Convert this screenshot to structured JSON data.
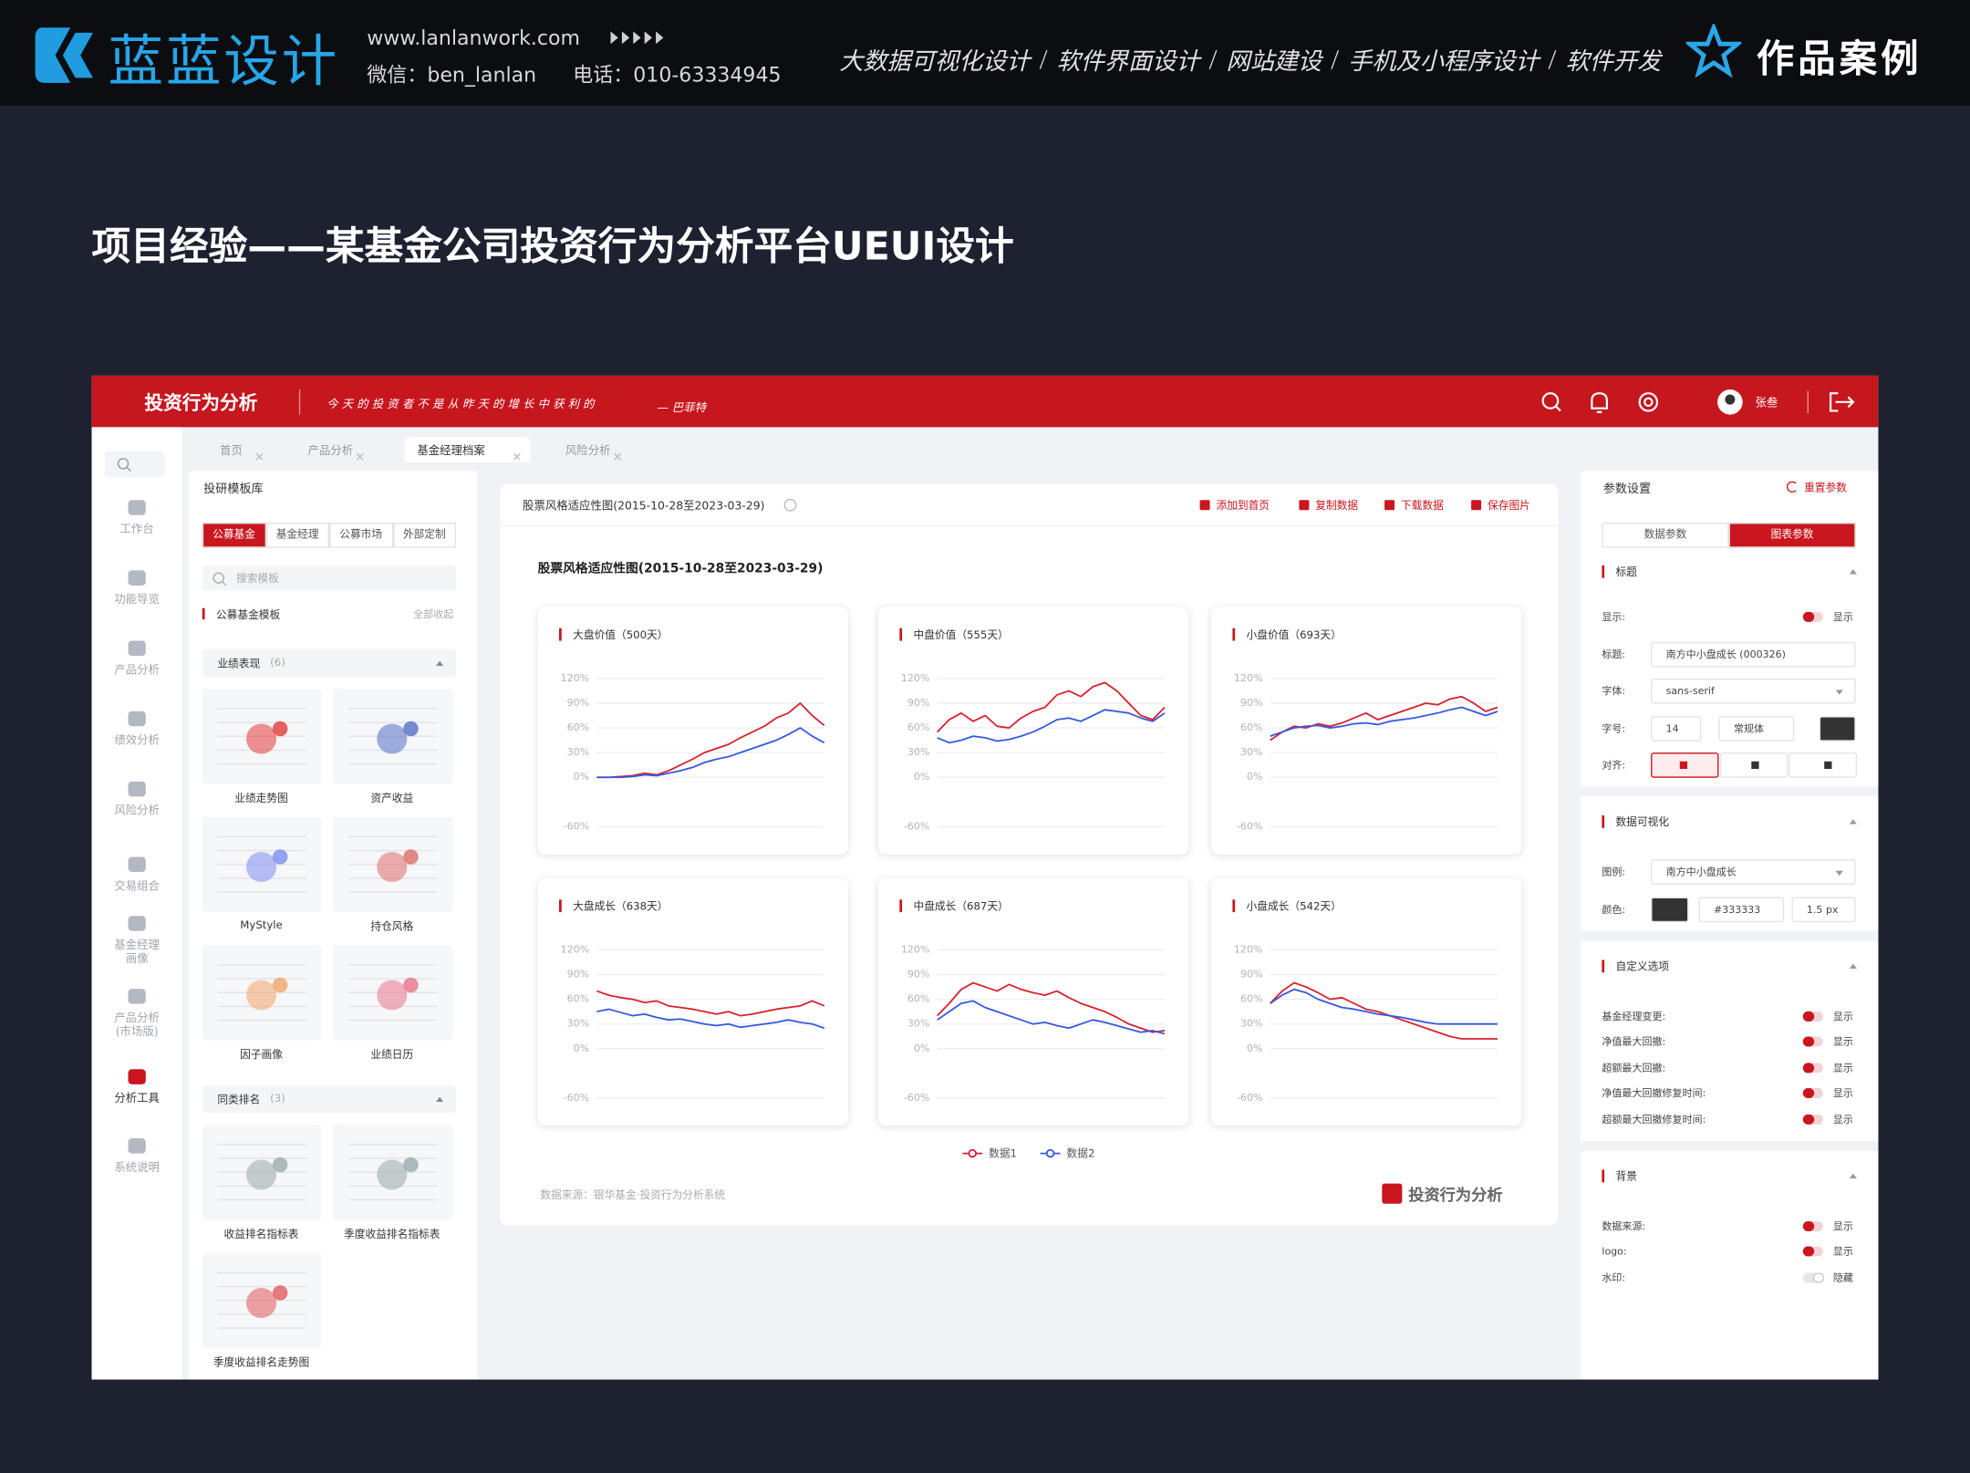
{
  "header": {
    "brand": "蓝蓝设计",
    "website": "www.lanlanwork.com",
    "wechat": "微信：ben_lanlan",
    "phone": "电话：010-63334945",
    "services": [
      "大数据可视化设计",
      "软件界面设计",
      "网站建设",
      "手机及小程序设计",
      "软件开发"
    ],
    "cases": "作品案例"
  },
  "page_title": "项目经验——某基金公司投资行为分析平台UEUI设计",
  "app": {
    "name": "投资行为分析",
    "slogan": "今天的投资者不是从昨天的增长中获利的",
    "slogan_author": "— 巴菲特",
    "user": "张叁",
    "nav": [
      "工作台",
      "功能导览",
      "产品分析",
      "绩效分析",
      "风险分析",
      "交易组合",
      "基金经理画像",
      "产品分析(市场版)",
      "分析工具",
      "系统说明"
    ],
    "tabs": [
      "首页",
      "产品分析",
      "基金经理档案",
      "风险分析"
    ],
    "library": {
      "title": "投研模板库",
      "tabs": [
        "公募基金",
        "基金经理",
        "公募市场",
        "外部定制"
      ],
      "search": "搜索模板",
      "section": "公募基金模板",
      "collapse": "全部收起",
      "groups": [
        {
          "name": "业绩表现",
          "count": "(6)",
          "items": [
            "业绩走势图",
            "资产收益",
            "MyStyle",
            "持仓风格",
            "因子画像",
            "业绩日历"
          ]
        },
        {
          "name": "同类排名",
          "count": "(3)",
          "items": [
            "收益排名指标表",
            "季度收益排名指标表",
            "季度收益排名走势图"
          ]
        }
      ]
    },
    "panel": {
      "title": "股票风格适应性图(2015-10-28至2023-03-29)",
      "actions": [
        "添加到首页",
        "复制数据",
        "下载数据",
        "保存图片"
      ],
      "chart_title": "股票风格适应性图(2015-10-28至2023-03-29)",
      "source": "数据来源：银华基金·投资行为分析系统",
      "logo": "投资行为分析"
    },
    "settings": {
      "title": "参数设置",
      "reset": "重置参数",
      "tabs": [
        "数据参数",
        "图表参数"
      ],
      "sections": [
        {
          "name": "标题",
          "rows": [
            {
              "label": "显示:",
              "toggle": "显示",
              "on": true
            },
            {
              "label": "标题:",
              "input": "南方中小盘成长 (000326)"
            },
            {
              "label": "字体:",
              "select": "sans-serif"
            },
            {
              "label": "字号:",
              "input": "14",
              "select": "常规体"
            },
            {
              "label": "对齐:"
            }
          ]
        },
        {
          "name": "数据可视化",
          "rows": [
            {
              "label": "图例:",
              "select": "南方中小盘成长"
            },
            {
              "label": "颜色:",
              "swatch": "#333333",
              "input": "#333333",
              "input2": "1.5 px"
            }
          ]
        },
        {
          "name": "自定义选项",
          "rows": [
            {
              "label": "基金经理变更:",
              "toggle": "显示",
              "on": true
            },
            {
              "label": "净值最大回撤:",
              "toggle": "显示",
              "on": true
            },
            {
              "label": "超额最大回撤:",
              "toggle": "显示",
              "on": true
            },
            {
              "label": "净值最大回撤修复时间:",
              "toggle": "显示",
              "on": true
            },
            {
              "label": "超额最大回撤修复时间:",
              "toggle": "显示",
              "on": true
            }
          ]
        },
        {
          "name": "背景",
          "rows": [
            {
              "label": "数据来源:",
              "toggle": "显示",
              "on": true
            },
            {
              "label": "logo:",
              "toggle": "显示",
              "on": true
            },
            {
              "label": "水印:",
              "toggle": "隐藏",
              "on": false
            }
          ]
        }
      ]
    }
  },
  "chart_data": [
    {
      "type": "line",
      "title": "大盘价值（500天）",
      "ylim": [
        -60,
        120
      ],
      "yticks": [
        {
          "value": 120,
          "label": "120%"
        },
        {
          "value": 90,
          "label": "90%"
        },
        {
          "value": 60,
          "label": "60%"
        },
        {
          "value": 30,
          "label": "30%"
        },
        {
          "value": 0,
          "label": "0%"
        },
        {
          "value": -60,
          "label": "-60%"
        }
      ],
      "series": [
        {
          "name": "数据1",
          "color": "#d9202e",
          "values": [
            0,
            0,
            1,
            2,
            5,
            3,
            8,
            15,
            22,
            30,
            35,
            40,
            48,
            55,
            62,
            72,
            78,
            90,
            75,
            63
          ]
        },
        {
          "name": "数据2",
          "color": "#3658e0",
          "values": [
            0,
            0,
            0,
            1,
            3,
            2,
            5,
            8,
            12,
            18,
            22,
            25,
            30,
            35,
            40,
            45,
            52,
            60,
            50,
            42
          ]
        }
      ]
    },
    {
      "type": "line",
      "title": "中盘价值（555天）",
      "ylim": [
        -60,
        120
      ],
      "yticks": [
        {
          "value": 120,
          "label": "120%"
        },
        {
          "value": 90,
          "label": "90%"
        },
        {
          "value": 60,
          "label": "60%"
        },
        {
          "value": 30,
          "label": "30%"
        },
        {
          "value": 0,
          "label": "0%"
        },
        {
          "value": -60,
          "label": "-60%"
        }
      ],
      "series": [
        {
          "color": "#d9202e",
          "values": [
            55,
            70,
            78,
            68,
            75,
            62,
            60,
            72,
            80,
            85,
            100,
            105,
            98,
            110,
            115,
            105,
            90,
            75,
            70,
            85
          ]
        },
        {
          "color": "#3658e0",
          "values": [
            48,
            42,
            45,
            50,
            48,
            44,
            46,
            50,
            55,
            62,
            70,
            72,
            68,
            75,
            82,
            80,
            78,
            72,
            68,
            78
          ]
        }
      ]
    },
    {
      "type": "line",
      "title": "小盘价值（693天）",
      "ylim": [
        -60,
        120
      ],
      "yticks": [
        {
          "value": 120,
          "label": "120%"
        },
        {
          "value": 90,
          "label": "90%"
        },
        {
          "value": 60,
          "label": "60%"
        },
        {
          "value": 30,
          "label": "30%"
        },
        {
          "value": 0,
          "label": "0%"
        },
        {
          "value": -60,
          "label": "-60%"
        }
      ],
      "series": [
        {
          "color": "#d9202e",
          "values": [
            45,
            55,
            62,
            60,
            65,
            62,
            66,
            72,
            78,
            70,
            75,
            80,
            85,
            90,
            88,
            95,
            98,
            90,
            80,
            85
          ]
        },
        {
          "color": "#3658e0",
          "values": [
            50,
            55,
            60,
            62,
            63,
            60,
            62,
            65,
            66,
            64,
            68,
            70,
            72,
            75,
            78,
            82,
            85,
            80,
            75,
            80
          ]
        }
      ]
    },
    {
      "type": "line",
      "title": "大盘成长（638天）",
      "ylim": [
        -60,
        120
      ],
      "yticks": [
        {
          "value": 120,
          "label": "120%"
        },
        {
          "value": 90,
          "label": "90%"
        },
        {
          "value": 60,
          "label": "60%"
        },
        {
          "value": 30,
          "label": "30%"
        },
        {
          "value": 0,
          "label": "0%"
        },
        {
          "value": -60,
          "label": "-60%"
        }
      ],
      "series": [
        {
          "color": "#d9202e",
          "values": [
            70,
            65,
            62,
            60,
            56,
            58,
            52,
            50,
            48,
            45,
            42,
            45,
            40,
            42,
            45,
            48,
            50,
            52,
            58,
            52
          ]
        },
        {
          "color": "#3658e0",
          "values": [
            45,
            48,
            44,
            40,
            42,
            38,
            35,
            36,
            33,
            30,
            28,
            30,
            26,
            28,
            30,
            32,
            35,
            32,
            30,
            25
          ]
        }
      ]
    },
    {
      "type": "line",
      "title": "中盘成长（687天）",
      "ylim": [
        -60,
        120
      ],
      "yticks": [
        {
          "value": 120,
          "label": "120%"
        },
        {
          "value": 90,
          "label": "90%"
        },
        {
          "value": 60,
          "label": "60%"
        },
        {
          "value": 30,
          "label": "30%"
        },
        {
          "value": 0,
          "label": "0%"
        },
        {
          "value": -60,
          "label": "-60%"
        }
      ],
      "series": [
        {
          "color": "#d9202e",
          "values": [
            40,
            55,
            72,
            80,
            75,
            70,
            78,
            72,
            68,
            65,
            70,
            62,
            55,
            50,
            45,
            38,
            30,
            25,
            20,
            22
          ]
        },
        {
          "color": "#3658e0",
          "values": [
            35,
            45,
            55,
            58,
            50,
            45,
            40,
            35,
            30,
            32,
            28,
            25,
            30,
            35,
            32,
            28,
            24,
            20,
            22,
            18
          ]
        }
      ]
    },
    {
      "type": "line",
      "title": "小盘成长（542天）",
      "ylim": [
        -60,
        120
      ],
      "yticks": [
        {
          "value": 120,
          "label": "120%"
        },
        {
          "value": 90,
          "label": "90%"
        },
        {
          "value": 60,
          "label": "60%"
        },
        {
          "value": 30,
          "label": "30%"
        },
        {
          "value": 0,
          "label": "0%"
        },
        {
          "value": -60,
          "label": "-60%"
        }
      ],
      "series": [
        {
          "color": "#d9202e",
          "values": [
            55,
            70,
            80,
            75,
            68,
            60,
            62,
            55,
            48,
            45,
            40,
            35,
            30,
            25,
            20,
            15,
            12,
            12,
            12,
            12
          ]
        },
        {
          "color": "#3658e0",
          "values": [
            55,
            65,
            72,
            68,
            60,
            55,
            50,
            48,
            45,
            42,
            40,
            38,
            35,
            32,
            30,
            30,
            30,
            30,
            30,
            30
          ]
        }
      ]
    }
  ]
}
